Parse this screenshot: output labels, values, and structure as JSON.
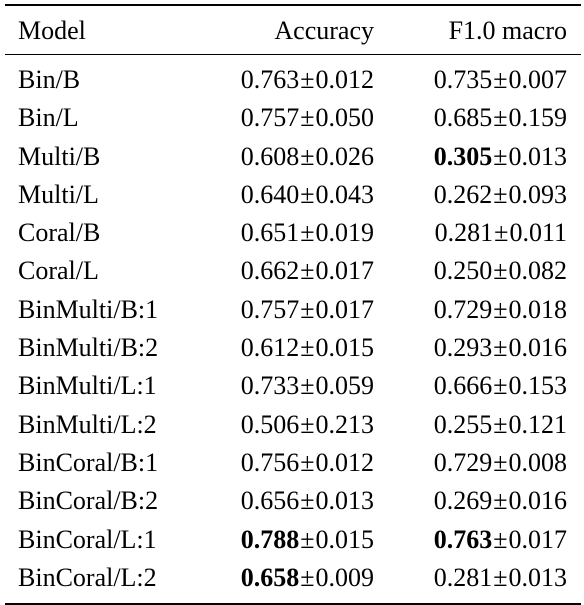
{
  "columns": [
    "Model",
    "Accuracy",
    "F1.0 macro"
  ],
  "pm_symbol": "±",
  "rows": [
    {
      "model": "Bin/B",
      "acc_mean": "0.763",
      "acc_std": "0.012",
      "acc_bold": false,
      "f1_mean": "0.735",
      "f1_std": "0.007",
      "f1_bold": false
    },
    {
      "model": "Bin/L",
      "acc_mean": "0.757",
      "acc_std": "0.050",
      "acc_bold": false,
      "f1_mean": "0.685",
      "f1_std": "0.159",
      "f1_bold": false
    },
    {
      "model": "Multi/B",
      "acc_mean": "0.608",
      "acc_std": "0.026",
      "acc_bold": false,
      "f1_mean": "0.305",
      "f1_std": "0.013",
      "f1_bold": true
    },
    {
      "model": "Multi/L",
      "acc_mean": "0.640",
      "acc_std": "0.043",
      "acc_bold": false,
      "f1_mean": "0.262",
      "f1_std": "0.093",
      "f1_bold": false
    },
    {
      "model": "Coral/B",
      "acc_mean": "0.651",
      "acc_std": "0.019",
      "acc_bold": false,
      "f1_mean": "0.281",
      "f1_std": "0.011",
      "f1_bold": false
    },
    {
      "model": "Coral/L",
      "acc_mean": "0.662",
      "acc_std": "0.017",
      "acc_bold": false,
      "f1_mean": "0.250",
      "f1_std": "0.082",
      "f1_bold": false
    },
    {
      "model": "BinMulti/B:1",
      "acc_mean": "0.757",
      "acc_std": "0.017",
      "acc_bold": false,
      "f1_mean": "0.729",
      "f1_std": "0.018",
      "f1_bold": false
    },
    {
      "model": "BinMulti/B:2",
      "acc_mean": "0.612",
      "acc_std": "0.015",
      "acc_bold": false,
      "f1_mean": "0.293",
      "f1_std": "0.016",
      "f1_bold": false
    },
    {
      "model": "BinMulti/L:1",
      "acc_mean": "0.733",
      "acc_std": "0.059",
      "acc_bold": false,
      "f1_mean": "0.666",
      "f1_std": "0.153",
      "f1_bold": false
    },
    {
      "model": "BinMulti/L:2",
      "acc_mean": "0.506",
      "acc_std": "0.213",
      "acc_bold": false,
      "f1_mean": "0.255",
      "f1_std": "0.121",
      "f1_bold": false
    },
    {
      "model": "BinCoral/B:1",
      "acc_mean": "0.756",
      "acc_std": "0.012",
      "acc_bold": false,
      "f1_mean": "0.729",
      "f1_std": "0.008",
      "f1_bold": false
    },
    {
      "model": "BinCoral/B:2",
      "acc_mean": "0.656",
      "acc_std": "0.013",
      "acc_bold": false,
      "f1_mean": "0.269",
      "f1_std": "0.016",
      "f1_bold": false
    },
    {
      "model": "BinCoral/L:1",
      "acc_mean": "0.788",
      "acc_std": "0.015",
      "acc_bold": true,
      "f1_mean": "0.763",
      "f1_std": "0.017",
      "f1_bold": true
    },
    {
      "model": "BinCoral/L:2",
      "acc_mean": "0.658",
      "acc_std": "0.009",
      "acc_bold": true,
      "f1_mean": "0.281",
      "f1_std": "0.013",
      "f1_bold": false
    }
  ]
}
